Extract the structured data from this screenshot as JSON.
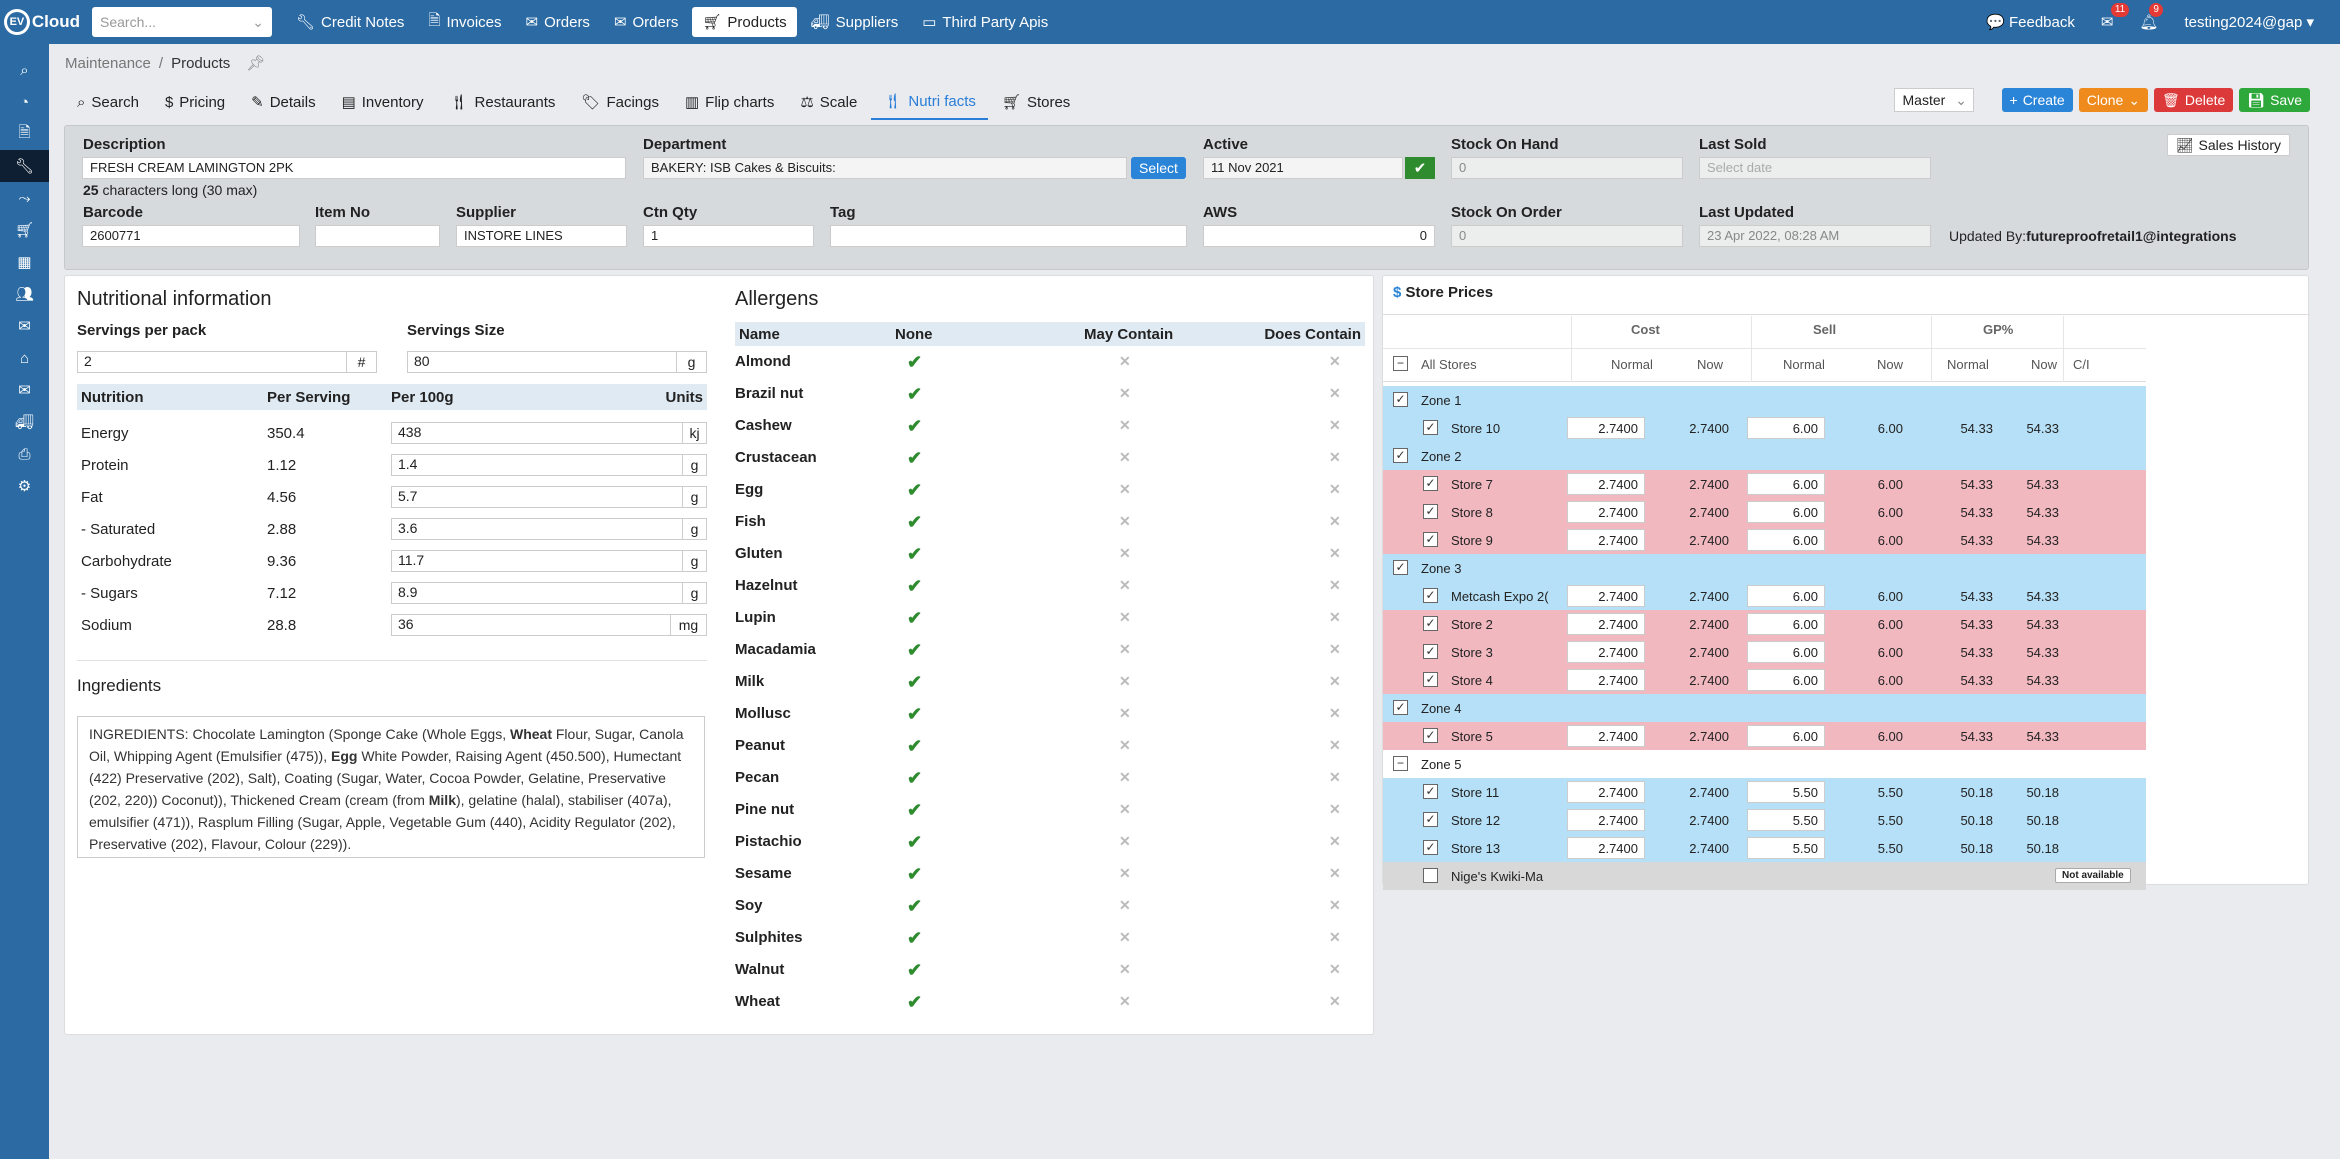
{
  "app": {
    "logo_badge": "EV",
    "logo_text": "Cloud"
  },
  "search": {
    "placeholder": "Search..."
  },
  "nav": [
    {
      "label": "Credit Notes",
      "icon": "wrench-icon"
    },
    {
      "label": "Invoices",
      "icon": "document-icon"
    },
    {
      "label": "Orders",
      "icon": "envelope-icon"
    },
    {
      "label": "Orders",
      "icon": "envelope-icon"
    },
    {
      "label": "Products",
      "icon": "cart-icon",
      "active": true
    },
    {
      "label": "Suppliers",
      "icon": "truck-icon"
    },
    {
      "label": "Third Party Apis",
      "icon": "window-icon"
    }
  ],
  "topright": {
    "feedback": "Feedback",
    "mail_count": "11",
    "bell_count": "9",
    "user": "testing2024@gap"
  },
  "breadcrumb": {
    "root": "Maintenance",
    "current": "Products"
  },
  "tabs": [
    "Search",
    "Pricing",
    "Details",
    "Inventory",
    "Restaurants",
    "Facings",
    "Flip charts",
    "Scale",
    "Nutri facts",
    "Stores"
  ],
  "active_tab": "Nutri facts",
  "toolbar": {
    "master": "Master",
    "create": "Create",
    "clone": "Clone",
    "delete": "Delete",
    "save": "Save"
  },
  "header": {
    "description_label": "Description",
    "description": "FRESH CREAM LAMINGTON 2PK",
    "char_count": "25",
    "char_note": "characters long (30 max)",
    "department_label": "Department",
    "department": "BAKERY:  ISB Cakes & Biscuits:",
    "select": "Select",
    "active_label": "Active",
    "active": "11 Nov 2021",
    "soh_label": "Stock On Hand",
    "soh": "0",
    "last_sold_label": "Last Sold",
    "last_sold_placeholder": "Select date",
    "sales_history": "Sales History",
    "barcode_label": "Barcode",
    "barcode": "2600771",
    "itemno_label": "Item No",
    "itemno": "",
    "supplier_label": "Supplier",
    "supplier": "INSTORE LINES",
    "ctn_label": "Ctn Qty",
    "ctn": "1",
    "tag_label": "Tag",
    "tag": "",
    "aws_label": "AWS",
    "aws": "0",
    "soo_label": "Stock On Order",
    "soo": "0",
    "updated_label": "Last Updated",
    "updated": "23 Apr 2022, 08:28 AM",
    "updated_by_label": "Updated By:",
    "updated_by": "futureproofretail1@integrations"
  },
  "nutrition": {
    "title": "Nutritional information",
    "servings_pack_label": "Servings per pack",
    "servings_pack": "2",
    "servings_pack_unit": "#",
    "servings_size_label": "Servings Size",
    "servings_size": "80",
    "servings_size_unit": "g",
    "headers": [
      "Nutrition",
      "Per Serving",
      "Per 100g",
      "Units"
    ],
    "rows": [
      {
        "name": "Energy",
        "per_serving": "350.4",
        "per_100g": "438",
        "unit": "kj"
      },
      {
        "name": "Protein",
        "per_serving": "1.12",
        "per_100g": "1.4",
        "unit": "g"
      },
      {
        "name": "Fat",
        "per_serving": "4.56",
        "per_100g": "5.7",
        "unit": "g"
      },
      {
        "name": "- Saturated",
        "per_serving": "2.88",
        "per_100g": "3.6",
        "unit": "g"
      },
      {
        "name": "Carbohydrate",
        "per_serving": "9.36",
        "per_100g": "11.7",
        "unit": "g"
      },
      {
        "name": "- Sugars",
        "per_serving": "7.12",
        "per_100g": "8.9",
        "unit": "g"
      },
      {
        "name": "Sodium",
        "per_serving": "28.8",
        "per_100g": "36",
        "unit": "mg"
      }
    ],
    "ingredients_title": "Ingredients",
    "ingredients_parts": [
      {
        "t": "INGREDIENTS: Chocolate Lamington (Sponge Cake (Whole Eggs, "
      },
      {
        "t": "Wheat",
        "b": true
      },
      {
        "t": " Flour, Sugar, Canola Oil, Whipping Agent (Emulsifier (475)), "
      },
      {
        "t": "Egg",
        "b": true
      },
      {
        "t": " White Powder, Raising Agent (450.500), Humectant (422) Preservative (202), Salt), Coating (Sugar, Water, Cocoa Powder, Gelatine, Preservative (202, 220)) Coconut)), Thickened Cream (cream (from "
      },
      {
        "t": "Milk",
        "b": true
      },
      {
        "t": "), gelatine (halal), stabiliser (407a), emulsifier (471)), Rasplum Filling (Sugar, Apple, Vegetable Gum (440), Acidity Regulator (202), Preservative (202), Flavour, Colour (229))."
      }
    ]
  },
  "allergens": {
    "title": "Allergens",
    "headers": [
      "Name",
      "None",
      "May Contain",
      "Does Contain"
    ],
    "items": [
      "Almond",
      "Brazil nut",
      "Cashew",
      "Crustacean",
      "Egg",
      "Fish",
      "Gluten",
      "Hazelnut",
      "Lupin",
      "Macadamia",
      "Milk",
      "Mollusc",
      "Peanut",
      "Pecan",
      "Pine nut",
      "Pistachio",
      "Sesame",
      "Soy",
      "Sulphites",
      "Walnut",
      "Wheat"
    ],
    "check_glyph": "✔",
    "cross_glyph": "✕"
  },
  "store_prices": {
    "title": "Store Prices",
    "groups": [
      "Cost",
      "Sell",
      "GP%"
    ],
    "columns": [
      "Normal",
      "Now",
      "Normal",
      "Now",
      "Normal",
      "Now",
      "C/I"
    ],
    "all_label": "All Stores",
    "rows": [
      {
        "kind": "zone",
        "name": "Zone 1",
        "color": "blue",
        "check": "✓"
      },
      {
        "kind": "store",
        "name": "Store 10",
        "color": "blue",
        "check": "✓",
        "cost_normal": "2.7400",
        "cost_now": "2.7400",
        "sell_normal": "6.00",
        "sell_now": "6.00",
        "gp_normal": "54.33",
        "gp_now": "54.33"
      },
      {
        "kind": "zone",
        "name": "Zone 2",
        "color": "blue",
        "check": "✓"
      },
      {
        "kind": "store",
        "name": "Store 7",
        "color": "pink",
        "check": "✓",
        "cost_normal": "2.7400",
        "cost_now": "2.7400",
        "sell_normal": "6.00",
        "sell_now": "6.00",
        "gp_normal": "54.33",
        "gp_now": "54.33"
      },
      {
        "kind": "store",
        "name": "Store 8",
        "color": "pink",
        "check": "✓",
        "cost_normal": "2.7400",
        "cost_now": "2.7400",
        "sell_normal": "6.00",
        "sell_now": "6.00",
        "gp_normal": "54.33",
        "gp_now": "54.33"
      },
      {
        "kind": "store",
        "name": "Store 9",
        "color": "pink",
        "check": "✓",
        "cost_normal": "2.7400",
        "cost_now": "2.7400",
        "sell_normal": "6.00",
        "sell_now": "6.00",
        "gp_normal": "54.33",
        "gp_now": "54.33"
      },
      {
        "kind": "zone",
        "name": "Zone 3",
        "color": "blue",
        "check": "✓"
      },
      {
        "kind": "store",
        "name": "Metcash Expo 2(",
        "color": "blue",
        "check": "✓",
        "cost_normal": "2.7400",
        "cost_now": "2.7400",
        "sell_normal": "6.00",
        "sell_now": "6.00",
        "gp_normal": "54.33",
        "gp_now": "54.33"
      },
      {
        "kind": "store",
        "name": "Store 2",
        "color": "pink",
        "check": "✓",
        "cost_normal": "2.7400",
        "cost_now": "2.7400",
        "sell_normal": "6.00",
        "sell_now": "6.00",
        "gp_normal": "54.33",
        "gp_now": "54.33"
      },
      {
        "kind": "store",
        "name": "Store 3",
        "color": "pink",
        "check": "✓",
        "cost_normal": "2.7400",
        "cost_now": "2.7400",
        "sell_normal": "6.00",
        "sell_now": "6.00",
        "gp_normal": "54.33",
        "gp_now": "54.33"
      },
      {
        "kind": "store",
        "name": "Store 4",
        "color": "pink",
        "check": "✓",
        "cost_normal": "2.7400",
        "cost_now": "2.7400",
        "sell_normal": "6.00",
        "sell_now": "6.00",
        "gp_normal": "54.33",
        "gp_now": "54.33"
      },
      {
        "kind": "zone",
        "name": "Zone 4",
        "color": "blue",
        "check": "✓"
      },
      {
        "kind": "store",
        "name": "Store 5",
        "color": "pink",
        "check": "✓",
        "cost_normal": "2.7400",
        "cost_now": "2.7400",
        "sell_normal": "6.00",
        "sell_now": "6.00",
        "gp_normal": "54.33",
        "gp_now": "54.33"
      },
      {
        "kind": "zone",
        "name": "Zone 5",
        "color": "white",
        "check": "−"
      },
      {
        "kind": "store",
        "name": "Store 11",
        "color": "blue",
        "check": "✓",
        "cost_normal": "2.7400",
        "cost_now": "2.7400",
        "sell_normal": "5.50",
        "sell_now": "5.50",
        "gp_normal": "50.18",
        "gp_now": "50.18"
      },
      {
        "kind": "store",
        "name": "Store 12",
        "color": "blue",
        "check": "✓",
        "cost_normal": "2.7400",
        "cost_now": "2.7400",
        "sell_normal": "5.50",
        "sell_now": "5.50",
        "gp_normal": "50.18",
        "gp_now": "50.18"
      },
      {
        "kind": "store",
        "name": "Store 13",
        "color": "blue",
        "check": "✓",
        "cost_normal": "2.7400",
        "cost_now": "2.7400",
        "sell_normal": "5.50",
        "sell_now": "5.50",
        "gp_normal": "50.18",
        "gp_now": "50.18"
      },
      {
        "kind": "unavailable",
        "name": "Nige's Kwiki-Ma",
        "color": "grey",
        "check": "",
        "status": "Not available"
      }
    ]
  },
  "sidebar_icons": [
    "search-icon",
    "dashboard-icon",
    "document-icon",
    "wrench-icon",
    "share-icon",
    "cart-icon",
    "calendar-icon",
    "users-icon",
    "envelope-icon",
    "bank-icon",
    "envelope-open-icon",
    "truck-icon",
    "printer-icon",
    "cogs-icon"
  ]
}
